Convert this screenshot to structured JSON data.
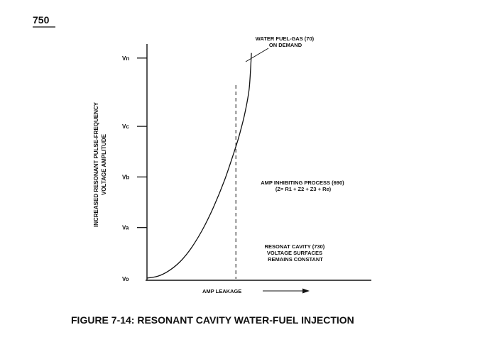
{
  "figure_number": "750",
  "caption": "FIGURE 7-14: RESONANT CAVITY WATER-FUEL INJECTION",
  "chart_data": {
    "type": "line",
    "title": "",
    "xlabel": "AMP LEAKAGE",
    "ylabel": [
      "INCREASED RESONANT PULSE-FREQUENCY",
      "VOLTAGE AMPLITUDE"
    ],
    "y_ticks": [
      "Vo",
      "Va",
      "Vb",
      "Vc",
      "Vn"
    ],
    "y_tick_values": [
      0,
      1,
      2,
      3,
      4.35
    ],
    "xlim": [
      0,
      1
    ],
    "ylim": [
      0,
      4.6
    ],
    "grid": false,
    "legend": "none",
    "series": [
      {
        "x": [
          0,
          0.05,
          0.1,
          0.15,
          0.2,
          0.25,
          0.3,
          0.35,
          0.4,
          0.42,
          0.44,
          0.46,
          0.47
        ],
        "y": [
          0,
          0.04,
          0.15,
          0.33,
          0.6,
          0.96,
          1.41,
          1.95,
          2.6,
          2.9,
          3.25,
          3.75,
          4.45
        ]
      }
    ],
    "marker_line": {
      "x": 0.4
    },
    "annotations": [
      {
        "lines": [
          "WATER FUEL-GAS (70)",
          "ON DEMAND"
        ]
      },
      {
        "lines": [
          "AMP INHIBITING PROCESS (690)",
          "(Z= R1 + Z2 + Z3 + Re)"
        ]
      },
      {
        "lines": [
          "RESONAT CAVITY (730)",
          "VOLTAGE  SURFACES",
          "REMAINS CONSTANT"
        ]
      }
    ]
  }
}
